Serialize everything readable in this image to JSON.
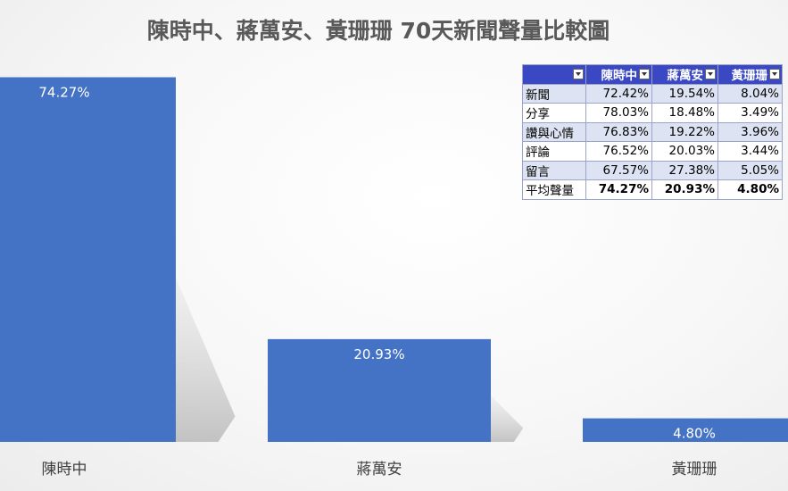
{
  "chart_data": {
    "type": "bar",
    "title": "陳時中、蔣萬安、黃珊珊 70天新聞聲量比較圖",
    "categories": [
      "陳時中",
      "蔣萬安",
      "黃珊珊"
    ],
    "values": [
      74.27,
      20.93,
      4.8
    ],
    "data_labels": [
      "74.27%",
      "20.93%",
      "4.80%"
    ],
    "ylim": [
      0,
      84
    ],
    "bar_color": "#4472c4",
    "grid": false,
    "legend": "none"
  },
  "table": {
    "columns": [
      "陳時中",
      "蔣萬安",
      "黃珊珊"
    ],
    "rows": [
      {
        "label": "新聞",
        "values": [
          "72.42%",
          "19.54%",
          "8.04%"
        ]
      },
      {
        "label": "分享",
        "values": [
          "78.03%",
          "18.48%",
          "3.49%"
        ]
      },
      {
        "label": "讚與心情",
        "values": [
          "76.83%",
          "19.22%",
          "3.96%"
        ]
      },
      {
        "label": "評論",
        "values": [
          "76.52%",
          "20.03%",
          "3.44%"
        ]
      },
      {
        "label": "留言",
        "values": [
          "67.57%",
          "27.38%",
          "5.05%"
        ]
      },
      {
        "label": "平均聲量",
        "values": [
          "74.27%",
          "20.93%",
          "4.80%"
        ]
      }
    ]
  }
}
